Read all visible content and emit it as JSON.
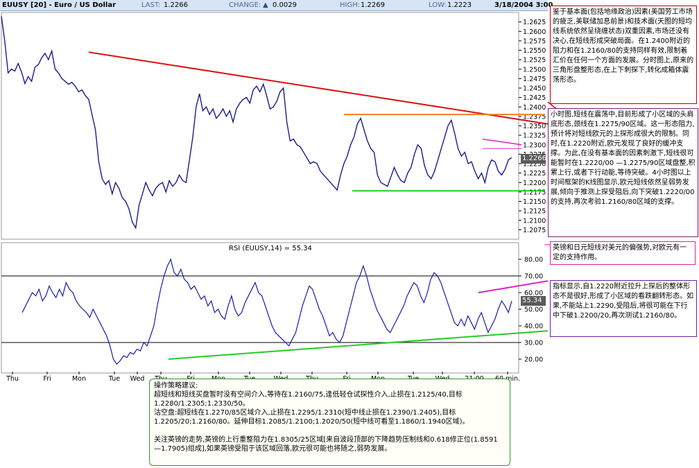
{
  "header": {
    "title": "EUUSY [20] - Euro / US Dollar",
    "last_label": "LAST:",
    "last_value": "1.2266",
    "change_label": "CHANGE:",
    "change_arrow": "▲",
    "change_value": "0.0029",
    "high_label": "HIGH:",
    "high_value": "1.2269",
    "low_label": "LOW:",
    "low_value": "1.2223",
    "datetime": "3/18/2004 3:00"
  },
  "colors": {
    "price_line": "#1a1a8c",
    "rsi_line": "#1a1aa8",
    "red_trend": "#dd1111",
    "orange_level": "#f08020",
    "green_level": "#22cc22",
    "magenta": "#e020c0",
    "grid": "#000000",
    "tag_bg": "#5a5a5a"
  },
  "chart_data": [
    {
      "type": "line",
      "title": "",
      "ylim": [
        1.205,
        1.265
      ],
      "y_ticks": [
        "1.2625",
        "1.2600",
        "1.2575",
        "1.2550",
        "1.2525",
        "1.2500",
        "1.2475",
        "1.2450",
        "1.2425",
        "1.2400",
        "1.2375",
        "1.2350",
        "1.2325",
        "1.2300",
        "1.2275",
        "1.2250",
        "1.2225",
        "1.2200",
        "1.2175",
        "1.2150",
        "1.2125",
        "1.2100",
        "1.2075"
      ],
      "x_ticks": [
        "Thu",
        "Fri",
        "Mon",
        "Tue",
        "Wed",
        "Thu",
        "Fri",
        "Mon",
        "Tue",
        "Wed",
        "Thu",
        "Fri",
        "Mon",
        "Tue",
        "Wed",
        "21:00",
        "60 min."
      ],
      "series": [
        {
          "values": [
            1.264,
            1.2575,
            1.249,
            1.25,
            1.2495,
            1.2515,
            1.2492,
            1.2462,
            1.248,
            1.2468,
            1.2505,
            1.2512,
            1.253,
            1.2542,
            1.2525,
            1.2548,
            1.25,
            1.249,
            1.2475,
            1.2468,
            1.246,
            1.2465,
            1.2455,
            1.244,
            1.2445,
            1.243,
            1.242,
            1.238,
            1.234,
            1.2255,
            1.221,
            1.2195,
            1.2205,
            1.217,
            1.22,
            1.2185,
            1.216,
            1.215,
            1.213,
            1.2095,
            1.208,
            1.214,
            1.217,
            1.22,
            1.218,
            1.2165,
            1.2185,
            1.2195,
            1.22,
            1.2175,
            1.2205,
            1.219,
            1.22,
            1.222,
            1.2205,
            1.22,
            1.226,
            1.232,
            1.24,
            1.2435,
            1.239,
            1.24,
            1.238,
            1.2395,
            1.237,
            1.238,
            1.2395,
            1.2375,
            1.239,
            1.236,
            1.2395,
            1.241,
            1.242,
            1.2425,
            1.241,
            1.2445,
            1.2455,
            1.244,
            1.246,
            1.243,
            1.2395,
            1.24,
            1.2415,
            1.244,
            1.245,
            1.236,
            1.231,
            1.2315,
            1.23,
            1.2295,
            1.228,
            1.2265,
            1.225,
            1.2255,
            1.225,
            1.223,
            1.222,
            1.221,
            1.22,
            1.219,
            1.218,
            1.222,
            1.225,
            1.227,
            1.23,
            1.232,
            1.2355,
            1.237,
            1.234,
            1.231,
            1.229,
            1.228,
            1.222,
            1.22,
            1.2195,
            1.219,
            1.2215,
            1.224,
            1.222,
            1.2205,
            1.22,
            1.2225,
            1.224,
            1.2275,
            1.23,
            1.229,
            1.2245,
            1.222,
            1.221,
            1.223,
            1.226,
            1.229,
            1.232,
            1.235,
            1.2365,
            1.233,
            1.229,
            1.227,
            1.228,
            1.225,
            1.2255,
            1.223,
            1.221,
            1.2225,
            1.22,
            1.224,
            1.226,
            1.2255,
            1.223,
            1.222,
            1.2235,
            1.226,
            1.2266
          ]
        }
      ],
      "annotations": [
        "red descending trendline",
        "orange resistance 1.2375",
        "green support 1.2175",
        "magenta channel"
      ]
    },
    {
      "type": "line",
      "title": "RSI (EUUSY,14) = 55.34",
      "ylim": [
        15,
        85
      ],
      "y_ticks": [
        "80.00",
        "70.00",
        "60.00",
        "50.00",
        "40.00",
        "30.00",
        "20.00"
      ],
      "levels": [
        70,
        30
      ],
      "last_value": "55.34",
      "series": [
        {
          "values": [
            48,
            52,
            56,
            60,
            58,
            62,
            55,
            58,
            64,
            60,
            57,
            62,
            58,
            66,
            62,
            60,
            55,
            52,
            50,
            48,
            45,
            50,
            46,
            42,
            38,
            34,
            28,
            20,
            17,
            19,
            22,
            21,
            24,
            23,
            26,
            25,
            30,
            28,
            34,
            40,
            52,
            62,
            70,
            76,
            80,
            72,
            70,
            74,
            68,
            66,
            62,
            64,
            60,
            56,
            58,
            52,
            55,
            48,
            50,
            46,
            44,
            52,
            58,
            50,
            46,
            48,
            54,
            58,
            62,
            66,
            60,
            58,
            52,
            46,
            40,
            36,
            34,
            32,
            30,
            28,
            32,
            36,
            44,
            52,
            58,
            64,
            62,
            56,
            50,
            46,
            40,
            34,
            36,
            32,
            30,
            34,
            42,
            50,
            58,
            66,
            70,
            76,
            70,
            62,
            56,
            50,
            46,
            42,
            38,
            36,
            40,
            44,
            48,
            52,
            58,
            62,
            66,
            64,
            58,
            54,
            60,
            68,
            72,
            70,
            66,
            60,
            54,
            48,
            42,
            40,
            44,
            40,
            46,
            42,
            38,
            44,
            48,
            42,
            36,
            40,
            44,
            50,
            55,
            52,
            48,
            55
          ]
        }
      ]
    }
  ],
  "rsi_tag": "55.34",
  "price_tag": "1.2266",
  "notes": {
    "note1": "鉴于基本面(包括地缘政治)因素(美国劳工市场的疲乏,美联储加息前景)和技术面(天图的短均线系统依然呈绕缠状态)双重因素,市场还没有决心,在短线形成突破局面。在1.2400附近的阻力和在1.2160/80的支持同样有效,限制着汇价在任何一个方面的发展。分时图上,原来的三角形盘整形态,在上下刺探下,转化成箱体震荡形态。",
    "note2": "小时图,短线在震荡中,目前形成了小区域的头肩底形态,颈线在1.2275/90区域。这一形态阻力,预计将对短线欧元的上探形成很大的限制。同时,在1.2220附近,欧元发现了良好的缓冲支撑。为此,在没有基本面的因素刺激下,短线很可能暂时在1.2220/00 —1.2275/90区域盘整,积累上行,或者下行动能,等待突破。4小时图以上时间框架的K线图显示,欧元短线依然呈弱势发展,倾向于推测上探受阻后,向下突破1.2220/00的支持,再次考验1.2160/80区域的支撑。",
    "note3": "英镑和日元短线对美元的偏强势,对欧元有一定的支持作用。",
    "note4": "指标显示,自1.2220附近拉升上探后的整体形态不是很好,形成了小区域的看跌翻转形态。如果,不能站上1.2290,受阻后,将很可能在下行中下破1.2200/20,再次测试1.2160/80。",
    "note5": "操作策略建议:\n超短线和短线买盘暂时没有空间介入,等待在1.2160/75,逢低轻仓试探性介入,止损在1.2125/40,目标1.2280/1.2305;1.2330/50。\n沽空盘:超短线在1.2270/85区域介入,止损在1.2295/1.2310(短中线止损在1.2390/1.2405),目标1.2205/20;1.2160/80。延伸目标1.2085/1.2100;1.2020/50(短中线可看至1.1860/1.1940区域)。\n\n关注英镑的走势,英镑的上行重整阻力在1.8305/25区域[来自波段顶部的下降趋势压制线和0.618修正位(1.8591 —1.7905)组成],如果英镑受阻于该区域回落,欧元很可能也将随之,弱势发展。"
  }
}
